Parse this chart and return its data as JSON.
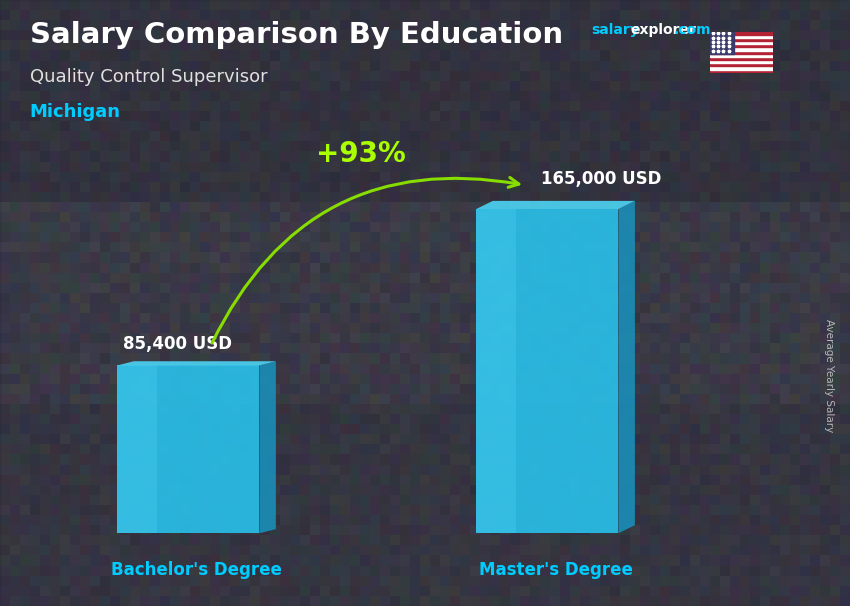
{
  "title_main": "Salary Comparison By Education",
  "title_salary": "salary",
  "title_explorer": "explorer",
  "title_com": ".com",
  "subtitle": "Quality Control Supervisor",
  "location": "Michigan",
  "ylabel": "Average Yearly Salary",
  "categories": [
    "Bachelor's Degree",
    "Master's Degree"
  ],
  "values": [
    85400,
    165000
  ],
  "value_labels": [
    "85,400 USD",
    "165,000 USD"
  ],
  "pct_change": "+93%",
  "bar_color_front": "#29C5F0",
  "bar_color_side": "#1A90BB",
  "bar_color_top": "#4DD8F8",
  "bar_color_gloss": "#60E0FF",
  "arrow_color": "#88DD00",
  "pct_color": "#AAFF00",
  "bg_color": "#3a3a4a",
  "title_color": "#ffffff",
  "subtitle_color": "#e0e0e0",
  "location_color": "#00CCFF",
  "value_color": "#ffffff",
  "xlabel_color": "#00CCFF",
  "salary_color": "#00CCFF",
  "explorer_color": "#ffffff",
  "ylabel_color": "#cccccc"
}
